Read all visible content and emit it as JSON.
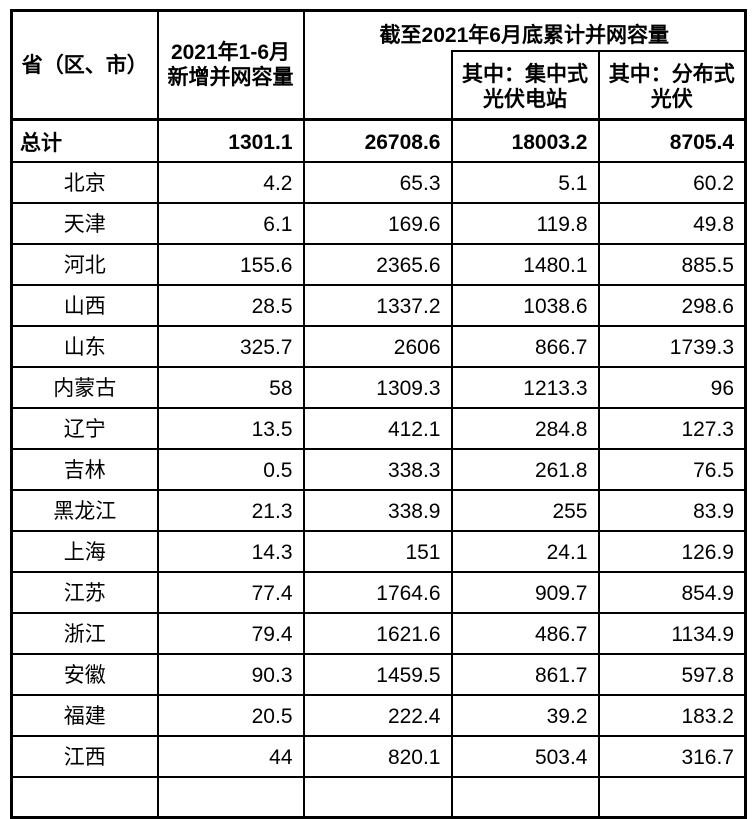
{
  "table": {
    "header": {
      "col_province": "省（区、市）",
      "col_new_capacity": "2021年1-6月\n新增并网容量",
      "group_title": "截至2021年6月底累计并网容量",
      "sub_centralized": "其中：集中式\n光伏电站",
      "sub_distributed": "其中：分布式\n光伏"
    },
    "total_row": {
      "name": "总计",
      "values": [
        "1301.1",
        "26708.6",
        "18003.2",
        "8705.4"
      ]
    },
    "rows": [
      {
        "name": "北京",
        "values": [
          "4.2",
          "65.3",
          "5.1",
          "60.2"
        ]
      },
      {
        "name": "天津",
        "values": [
          "6.1",
          "169.6",
          "119.8",
          "49.8"
        ]
      },
      {
        "name": "河北",
        "values": [
          "155.6",
          "2365.6",
          "1480.1",
          "885.5"
        ]
      },
      {
        "name": "山西",
        "values": [
          "28.5",
          "1337.2",
          "1038.6",
          "298.6"
        ]
      },
      {
        "name": "山东",
        "values": [
          "325.7",
          "2606",
          "866.7",
          "1739.3"
        ]
      },
      {
        "name": "内蒙古",
        "values": [
          "58",
          "1309.3",
          "1213.3",
          "96"
        ]
      },
      {
        "name": "辽宁",
        "values": [
          "13.5",
          "412.1",
          "284.8",
          "127.3"
        ]
      },
      {
        "name": "吉林",
        "values": [
          "0.5",
          "338.3",
          "261.8",
          "76.5"
        ]
      },
      {
        "name": "黑龙江",
        "values": [
          "21.3",
          "338.9",
          "255",
          "83.9"
        ]
      },
      {
        "name": "上海",
        "values": [
          "14.3",
          "151",
          "24.1",
          "126.9"
        ]
      },
      {
        "name": "江苏",
        "values": [
          "77.4",
          "1764.6",
          "909.7",
          "854.9"
        ]
      },
      {
        "name": "浙江",
        "values": [
          "79.4",
          "1621.6",
          "486.7",
          "1134.9"
        ]
      },
      {
        "name": "安徽",
        "values": [
          "90.3",
          "1459.5",
          "861.7",
          "597.8"
        ]
      },
      {
        "name": "福建",
        "values": [
          "20.5",
          "222.4",
          "39.2",
          "183.2"
        ]
      },
      {
        "name": "江西",
        "values": [
          "44",
          "820.1",
          "503.4",
          "316.7"
        ]
      }
    ],
    "colors": {
      "border": "#000000",
      "text": "#000000",
      "background": "#ffffff"
    }
  }
}
